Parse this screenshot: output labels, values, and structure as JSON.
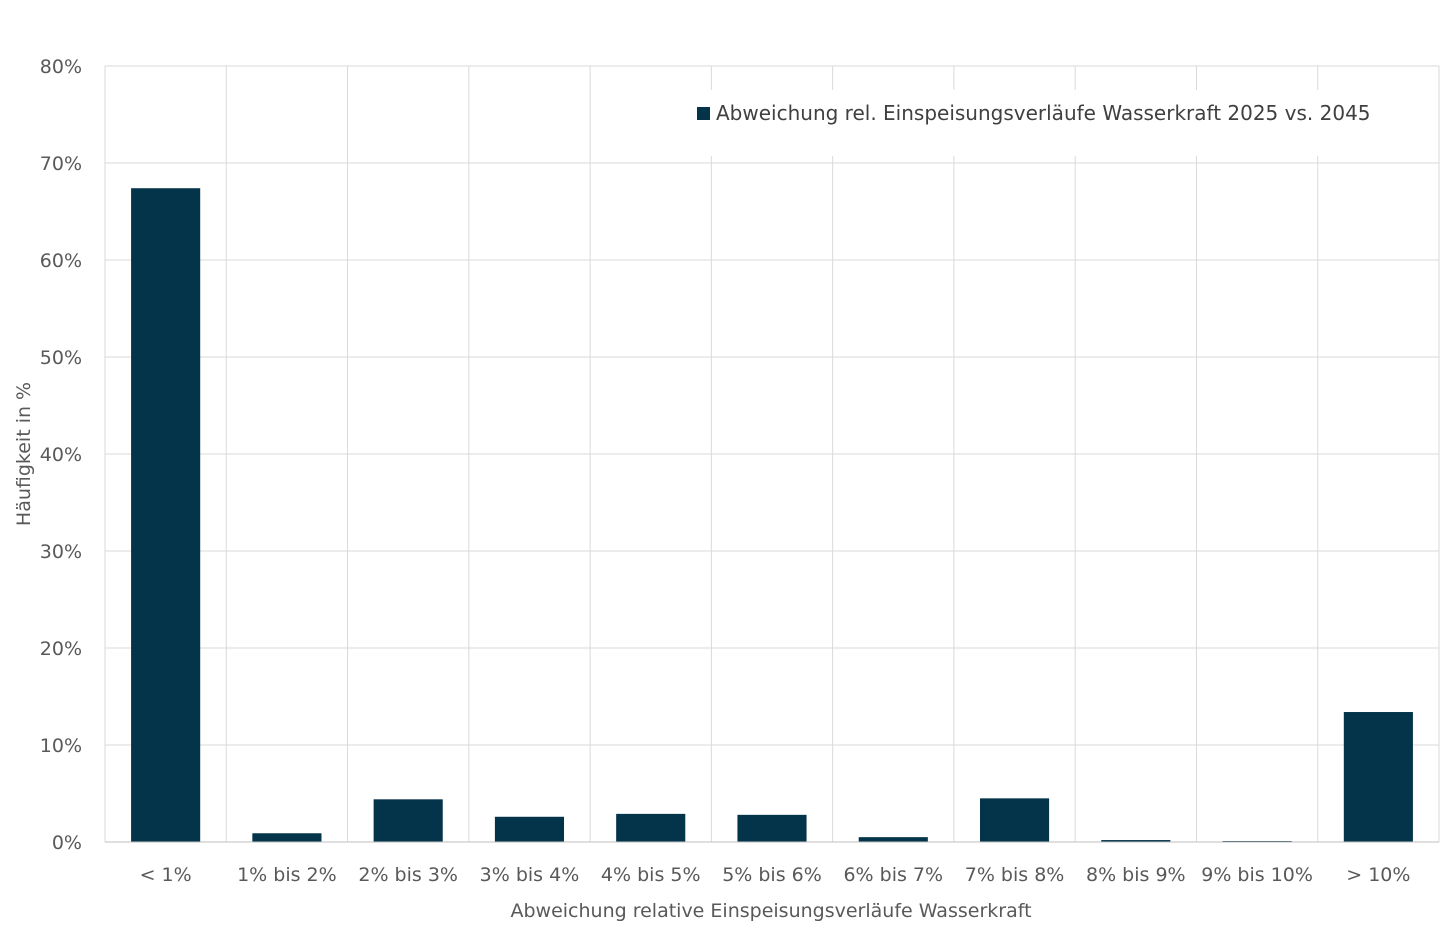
{
  "chart_data": {
    "type": "bar",
    "title": "",
    "xlabel": "Abweichung relative Einspeisungsverläufe Wasserkraft",
    "ylabel": "Häufigkeit in %",
    "ylim": [
      0,
      80
    ],
    "y_ticks": [
      {
        "value": 0,
        "label": "0%"
      },
      {
        "value": 10,
        "label": "10%"
      },
      {
        "value": 20,
        "label": "20%"
      },
      {
        "value": 30,
        "label": "30%"
      },
      {
        "value": 40,
        "label": "40%"
      },
      {
        "value": 50,
        "label": "50%"
      },
      {
        "value": 60,
        "label": "60%"
      },
      {
        "value": 70,
        "label": "70%"
      },
      {
        "value": 80,
        "label": "80%"
      }
    ],
    "categories": [
      "< 1%",
      "1% bis 2%",
      "2% bis 3%",
      "3% bis 4%",
      "4% bis 5%",
      "5% bis 6%",
      "6% bis 7%",
      "7% bis 8%",
      "8% bis 9%",
      "9% bis 10%",
      "> 10%"
    ],
    "series": [
      {
        "name": "Abweichung rel. Einspeisungsverläufe Wasserkraft 2025 vs. 2045",
        "values": [
          67.4,
          0.9,
          4.4,
          2.6,
          2.9,
          2.8,
          0.5,
          4.5,
          0.2,
          0.1,
          13.4
        ],
        "color": "#04344a"
      }
    ],
    "grid": true,
    "legend_position": "top-right"
  }
}
